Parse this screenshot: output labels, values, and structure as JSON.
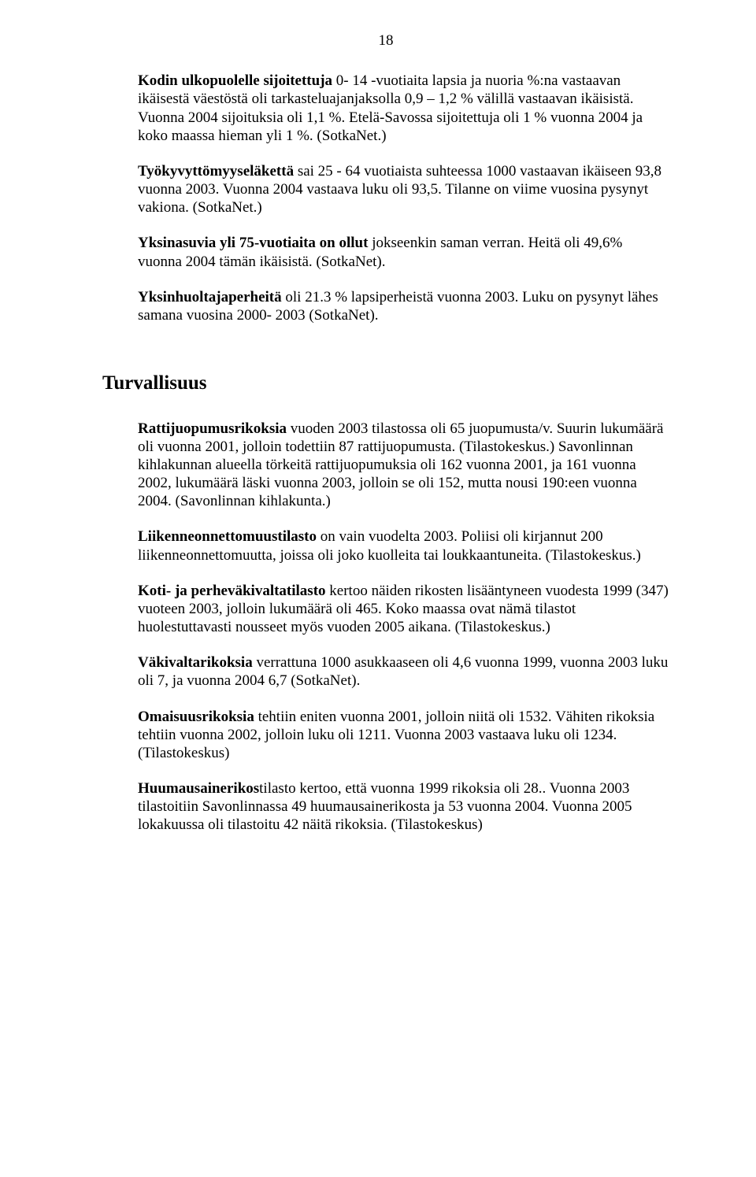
{
  "pageNumber": "18",
  "p1a": "Kodin ulkopuolelle sijoitettuja",
  "p1b": " 0- 14 -vuotiaita lapsia ja nuoria %:na vastaavan ikäisestä väestöstä oli tarkasteluajanjaksolla 0,9 – 1,2 % välillä vastaavan ikäisistä. Vuonna 2004 sijoituksia oli 1,1 %. Etelä-Savossa sijoitettuja oli 1 % vuonna 2004 ja koko maassa hieman yli 1 %. (SotkaNet.)",
  "p2a": "Työkyvyttömyyseläkettä",
  "p2b": " sai 25 - 64 vuotiaista suhteessa 1000 vastaavan ikäiseen 93,8 vuonna 2003. Vuonna 2004 vastaava luku oli 93,5. Tilanne on viime vuosina pysynyt vakiona. (SotkaNet.)",
  "p3a": "Yksinasuvia yli 75-vuotiaita on ollut",
  "p3b": " jokseenkin saman verran. Heitä oli 49,6% vuonna  2004 tämän ikäisistä. (SotkaNet).",
  "p4a": "Yksinhuoltajaperheitä",
  "p4b": " oli 21.3 % lapsiperheistä vuonna 2003. Luku on pysynyt lähes samana vuosina 2000- 2003 (SotkaNet).",
  "sectionTitle": "Turvallisuus",
  "p5a": "Rattijuopumusrikoksia",
  "p5b": " vuoden 2003 tilastossa oli 65 juopumusta/v. Suurin lukumäärä oli vuonna 2001, jolloin todettiin 87 rattijuopumusta. (Tilastokeskus.) Savonlinnan kihlakunnan alueella törkeitä rattijuopumuksia oli 162 vuonna 2001, ja 161 vuonna 2002, lukumäärä läski vuonna 2003, jolloin se oli 152, mutta nousi 190:een vuonna 2004. (Savonlinnan kihlakunta.)",
  "p6a": "Liikenneonnettomuustilasto",
  "p6b": " on vain vuodelta 2003. Poliisi oli kirjannut 200 liikenneonnettomuutta, joissa oli joko kuolleita tai loukkaantuneita. (Tilastokeskus.)",
  "p7a": "Koti- ja perheväkivaltatilasto",
  "p7b": " kertoo näiden rikosten lisääntyneen vuodesta 1999 (347) vuoteen 2003, jolloin lukumäärä oli 465. Koko maassa ovat nämä tilastot huolestuttavasti nousseet myös vuoden 2005 aikana. (Tilastokeskus.)",
  "p8a": "Väkivaltarikoksia",
  "p8b": " verrattuna 1000 asukkaaseen oli 4,6 vuonna 1999, vuonna 2003 luku oli 7, ja vuonna 2004 6,7 (SotkaNet).",
  "p9a": "Omaisuusrikoksia",
  "p9b": " tehtiin eniten vuonna 2001, jolloin niitä oli 1532. Vähiten rikoksia tehtiin vuonna 2002, jolloin luku oli 1211. Vuonna 2003 vastaava luku oli 1234. (Tilastokeskus)",
  "p10a": "Huumausainerikos",
  "p10b": "tilasto kertoo, että vuonna 1999 rikoksia oli 28.. Vuonna 2003 tilastoitiin Savonlinnassa 49 huumausainerikosta ja 53 vuonna 2004. Vuonna 2005 lokakuussa oli tilastoitu 42 näitä rikoksia. (Tilastokeskus)"
}
